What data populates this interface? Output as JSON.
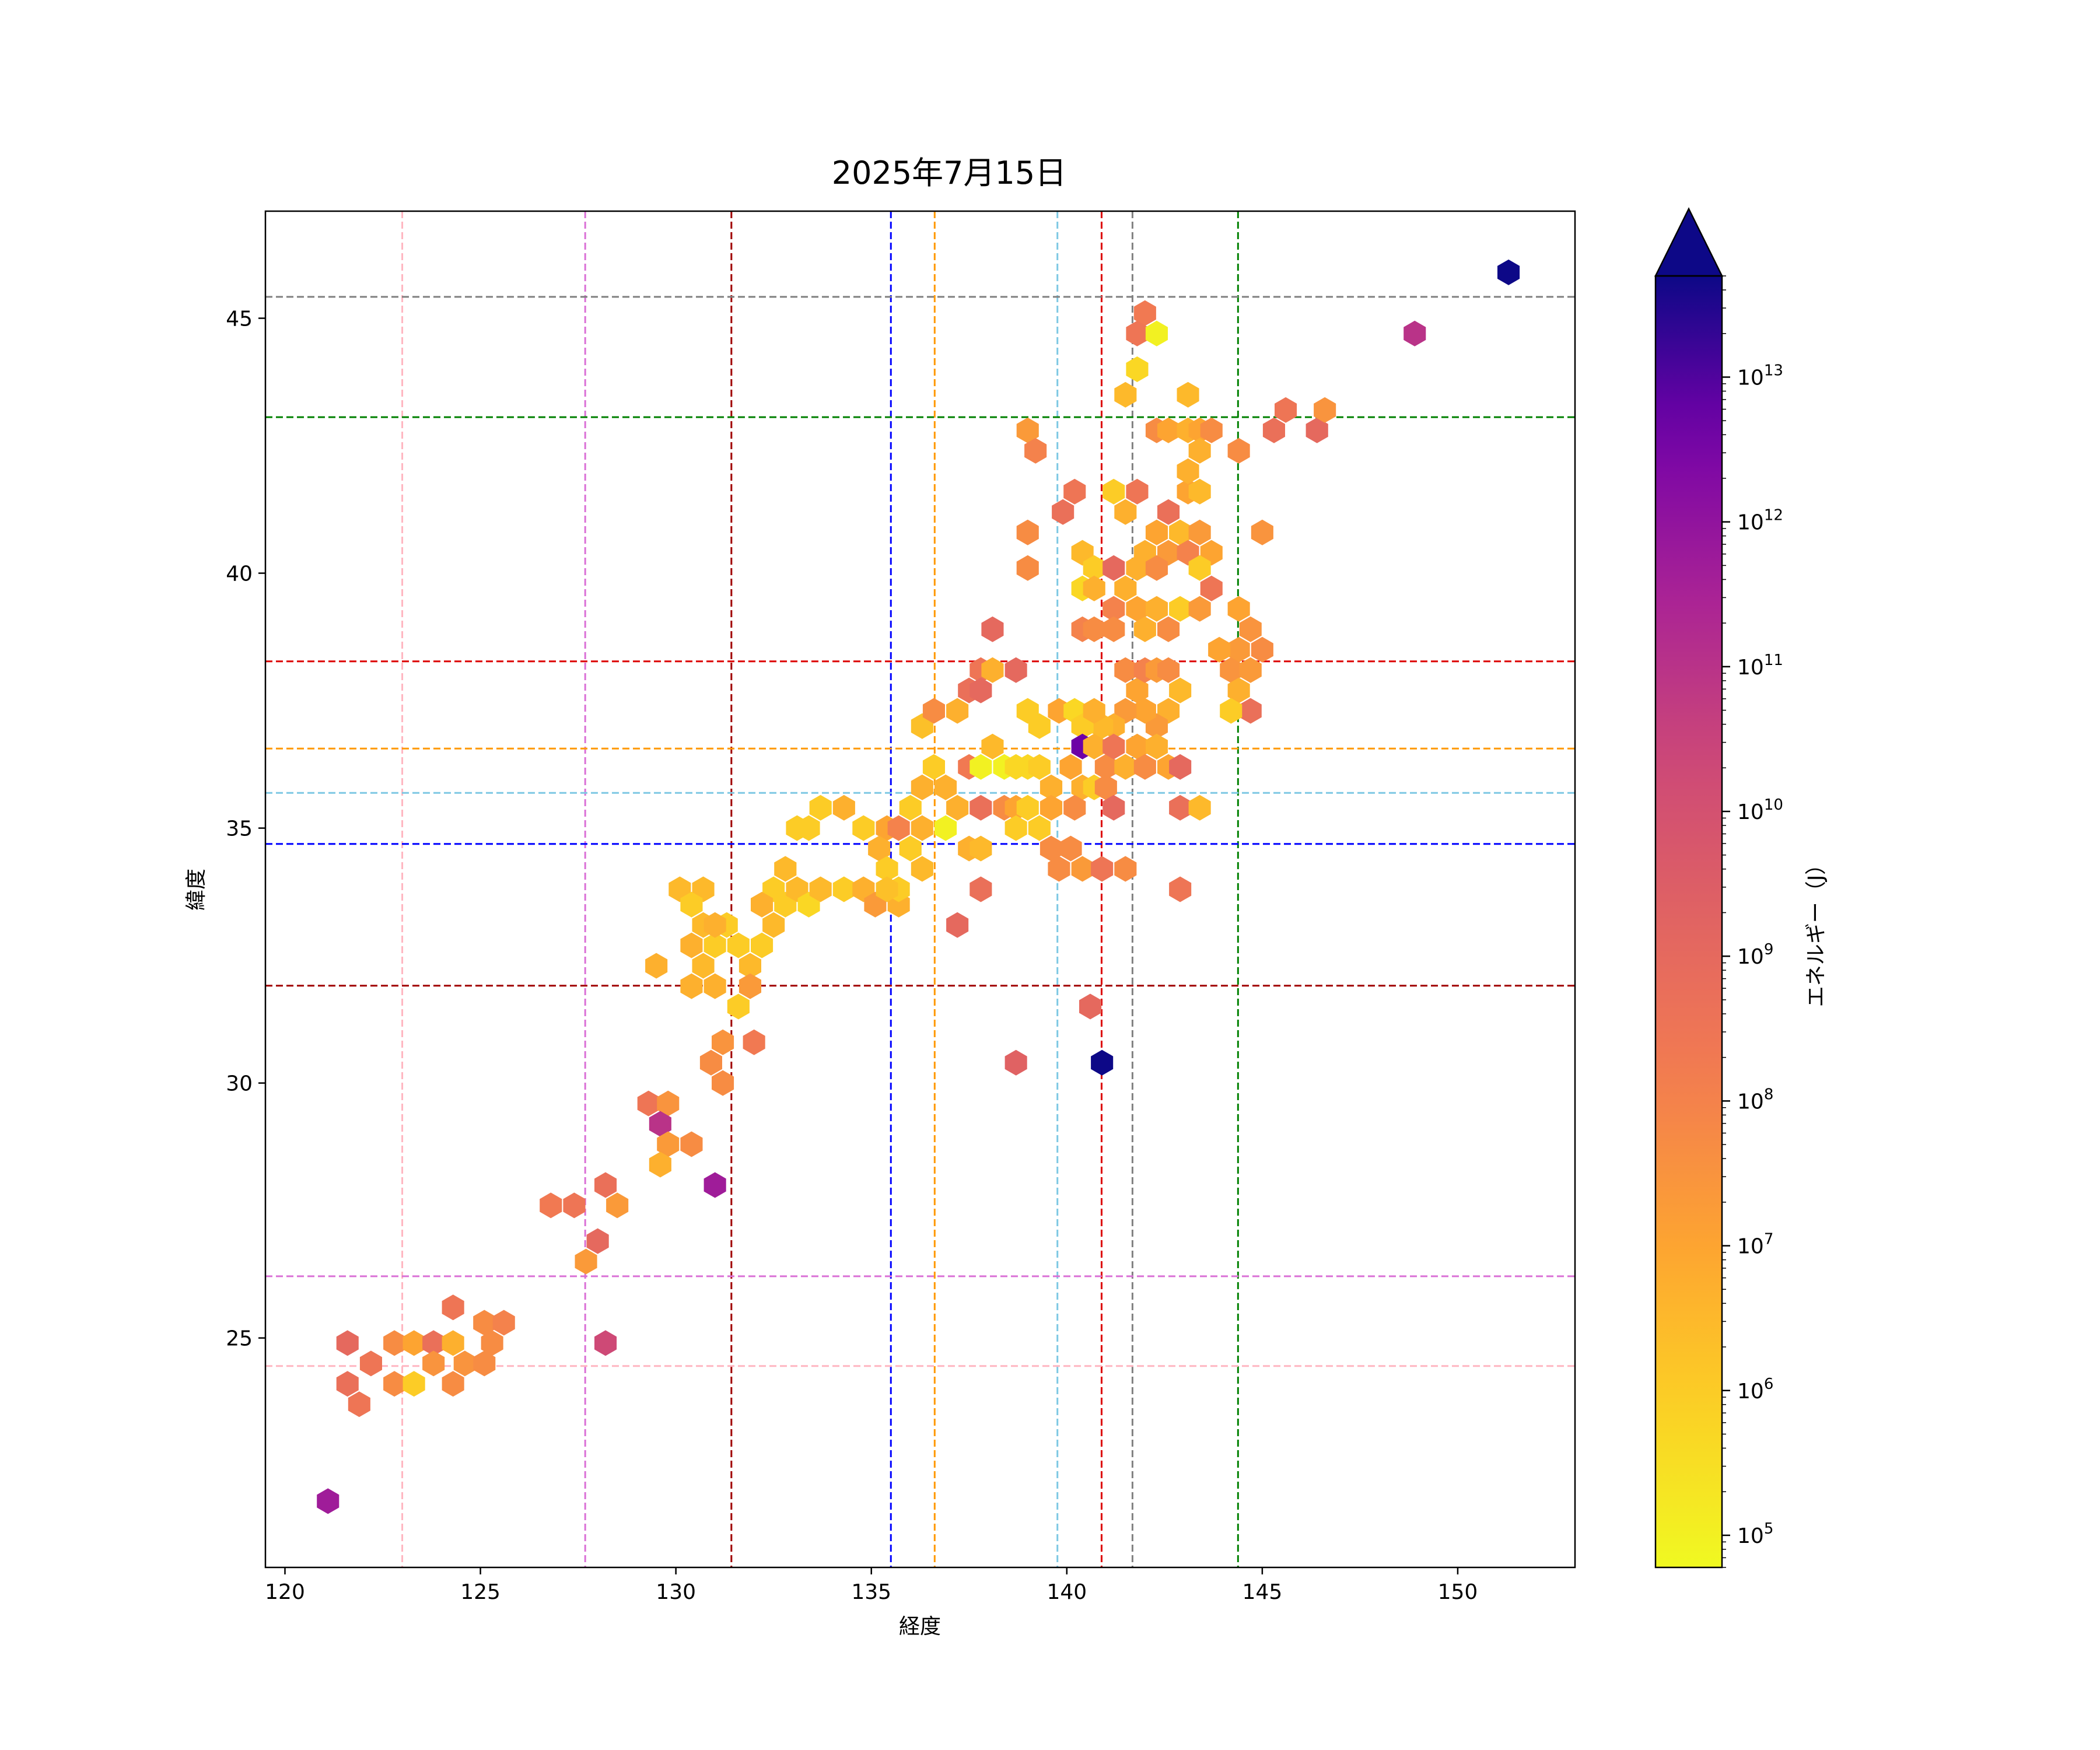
{
  "chart_data": {
    "type": "hexbin",
    "title": "2025年7月15日",
    "xlabel": "経度",
    "ylabel": "緯度",
    "xlim": [
      119.5,
      153
    ],
    "ylim": [
      20.5,
      47.1
    ],
    "xticks": [
      120,
      125,
      130,
      135,
      140,
      145,
      150
    ],
    "yticks": [
      25,
      30,
      35,
      40,
      45
    ],
    "grid": false,
    "colormap": "plasma_r",
    "colorbar": {
      "label": "エネルギー（J）",
      "scale": "log",
      "range": [
        60000,
        50000000000000
      ],
      "tick_exponents": [
        5,
        6,
        7,
        8,
        9,
        10,
        11,
        12,
        13
      ],
      "tick_base": "10",
      "extend": "max"
    },
    "reference_lines": {
      "vertical": [
        {
          "x": 123.0,
          "color": "#ffb6c1"
        },
        {
          "x": 127.68,
          "color": "#da70d6"
        },
        {
          "x": 131.42,
          "color": "#a00000"
        },
        {
          "x": 135.5,
          "color": "#0000ff"
        },
        {
          "x": 136.62,
          "color": "#ff9900"
        },
        {
          "x": 139.76,
          "color": "#7ec8e3"
        },
        {
          "x": 140.89,
          "color": "#dd0000"
        },
        {
          "x": 141.68,
          "color": "#808080"
        },
        {
          "x": 144.38,
          "color": "#008000"
        }
      ],
      "horizontal": [
        {
          "y": 45.42,
          "color": "#808080"
        },
        {
          "y": 43.06,
          "color": "#008000"
        },
        {
          "y": 38.27,
          "color": "#dd0000"
        },
        {
          "y": 36.56,
          "color": "#ff9900"
        },
        {
          "y": 35.69,
          "color": "#7ec8e3"
        },
        {
          "y": 34.69,
          "color": "#0000ff"
        },
        {
          "y": 31.91,
          "color": "#a00000"
        },
        {
          "y": 26.21,
          "color": "#da70d6"
        },
        {
          "y": 24.45,
          "color": "#ffb6c1"
        }
      ]
    },
    "points": [
      [
        151.3,
        45.9,
        50000000000000.0
      ],
      [
        148.9,
        44.7,
        100000000000.0
      ],
      [
        146.4,
        42.8,
        1000000000.0
      ],
      [
        146.6,
        43.2,
        30000000.0
      ],
      [
        145.6,
        43.2,
        300000000.0
      ],
      [
        145.3,
        42.8,
        500000000.0
      ],
      [
        145.0,
        40.8,
        30000000.0
      ],
      [
        142.0,
        45.1,
        200000000.0
      ],
      [
        141.8,
        44.7,
        300000000.0
      ],
      [
        142.3,
        44.7,
        100000.0
      ],
      [
        141.8,
        44.0,
        500000.0
      ],
      [
        141.5,
        43.5,
        3000000.0
      ],
      [
        143.1,
        43.5,
        3000000.0
      ],
      [
        139.0,
        42.8,
        20000000.0
      ],
      [
        139.2,
        42.4,
        100000000.0
      ],
      [
        142.3,
        42.8,
        50000000.0
      ],
      [
        142.6,
        42.8,
        10000000.0
      ],
      [
        143.1,
        42.8,
        5000000.0
      ],
      [
        143.4,
        42.8,
        10000000.0
      ],
      [
        143.7,
        42.8,
        50000000.0
      ],
      [
        140.2,
        41.6,
        300000000.0
      ],
      [
        139.9,
        41.2,
        500000000.0
      ],
      [
        141.2,
        41.6,
        1000000.0
      ],
      [
        141.8,
        41.6,
        300000000.0
      ],
      [
        141.5,
        41.2,
        5000000.0
      ],
      [
        142.6,
        41.2,
        500000000.0
      ],
      [
        143.1,
        41.6,
        10000000.0
      ],
      [
        143.4,
        41.6,
        3000000.0
      ],
      [
        143.1,
        42.0,
        5000000.0
      ],
      [
        143.4,
        42.4,
        5000000.0
      ],
      [
        144.4,
        42.4,
        50000000.0
      ],
      [
        139.0,
        40.8,
        50000000.0
      ],
      [
        139.0,
        40.1,
        50000000.0
      ],
      [
        140.4,
        40.4,
        3000000.0
      ],
      [
        140.7,
        40.1,
        1000000.0
      ],
      [
        140.4,
        39.7,
        500000.0
      ],
      [
        140.7,
        39.7,
        5000000.0
      ],
      [
        141.2,
        40.1,
        1000000000.0
      ],
      [
        141.5,
        39.7,
        5000000.0
      ],
      [
        141.2,
        39.3,
        100000000.0
      ],
      [
        141.8,
        40.1,
        5000000.0
      ],
      [
        142.0,
        40.4,
        5000000.0
      ],
      [
        142.3,
        40.8,
        10000000.0
      ],
      [
        142.6,
        40.4,
        20000000.0
      ],
      [
        142.9,
        40.8,
        3000000.0
      ],
      [
        143.1,
        40.4,
        100000000.0
      ],
      [
        143.4,
        40.8,
        20000000.0
      ],
      [
        143.7,
        40.4,
        10000000.0
      ],
      [
        143.4,
        40.1,
        1000000.0
      ],
      [
        143.7,
        39.7,
        300000000.0
      ],
      [
        142.3,
        40.1,
        50000000.0
      ],
      [
        138.1,
        38.9,
        1000000000.0
      ],
      [
        140.4,
        38.9,
        100000000.0
      ],
      [
        140.7,
        38.9,
        50000000.0
      ],
      [
        141.2,
        38.9,
        50000000.0
      ],
      [
        141.8,
        39.3,
        10000000.0
      ],
      [
        142.0,
        38.9,
        5000000.0
      ],
      [
        142.3,
        39.3,
        5000000.0
      ],
      [
        142.6,
        38.9,
        50000000.0
      ],
      [
        142.9,
        39.3,
        1000000.0
      ],
      [
        143.4,
        39.3,
        20000000.0
      ],
      [
        144.4,
        39.3,
        10000000.0
      ],
      [
        144.7,
        38.9,
        30000000.0
      ],
      [
        145.0,
        38.5,
        50000000.0
      ],
      [
        144.4,
        38.5,
        20000000.0
      ],
      [
        137.5,
        37.7,
        500000000.0
      ],
      [
        137.8,
        38.1,
        300000000.0
      ],
      [
        138.1,
        38.1,
        5000000.0
      ],
      [
        138.7,
        38.1,
        1000000000.0
      ],
      [
        137.8,
        37.7,
        1000000000.0
      ],
      [
        141.5,
        38.1,
        50000000.0
      ],
      [
        141.8,
        37.7,
        10000000.0
      ],
      [
        142.0,
        38.1,
        100000000.0
      ],
      [
        142.3,
        38.1,
        20000000.0
      ],
      [
        142.6,
        38.1,
        50000000.0
      ],
      [
        142.9,
        37.7,
        3000000.0
      ],
      [
        143.9,
        38.5,
        10000000.0
      ],
      [
        144.2,
        38.1,
        30000000.0
      ],
      [
        144.4,
        37.7,
        5000000.0
      ],
      [
        144.7,
        38.1,
        20000000.0
      ],
      [
        144.7,
        37.3,
        500000000.0
      ],
      [
        144.2,
        37.3,
        1000000.0
      ],
      [
        142.6,
        37.3,
        5000000.0
      ],
      [
        142.3,
        37.0,
        20000000.0
      ],
      [
        142.0,
        37.3,
        10000000.0
      ],
      [
        141.5,
        37.3,
        20000000.0
      ],
      [
        141.2,
        37.0,
        5000000.0
      ],
      [
        140.9,
        37.0,
        3000000.0
      ],
      [
        136.3,
        37.0,
        2000000.0
      ],
      [
        136.6,
        37.3,
        50000000.0
      ],
      [
        137.2,
        37.3,
        5000000.0
      ],
      [
        139.0,
        37.3,
        1000000.0
      ],
      [
        139.3,
        37.0,
        1000000.0
      ],
      [
        139.8,
        37.3,
        10000000.0
      ],
      [
        140.2,
        37.3,
        500000.0
      ],
      [
        140.4,
        37.0,
        1000000.0
      ],
      [
        140.7,
        37.3,
        5000000.0
      ],
      [
        140.4,
        36.6,
        5000000000000.0
      ],
      [
        140.1,
        36.2,
        10000000.0
      ],
      [
        140.7,
        36.6,
        5000000.0
      ],
      [
        141.0,
        36.2,
        50000000.0
      ],
      [
        141.2,
        36.6,
        300000000.0
      ],
      [
        141.5,
        36.2,
        5000000.0
      ],
      [
        141.8,
        36.6,
        10000000.0
      ],
      [
        142.0,
        36.2,
        50000000.0
      ],
      [
        142.3,
        36.6,
        5000000.0
      ],
      [
        142.6,
        36.2,
        10000000.0
      ],
      [
        142.9,
        36.2,
        1000000000.0
      ],
      [
        138.1,
        36.6,
        3000000.0
      ],
      [
        137.5,
        36.2,
        200000000.0
      ],
      [
        137.8,
        36.2,
        100000.0
      ],
      [
        138.4,
        36.2,
        100000.0
      ],
      [
        138.7,
        36.2,
        500000.0
      ],
      [
        139.0,
        36.2,
        500000.0
      ],
      [
        139.3,
        36.2,
        1000000.0
      ],
      [
        139.6,
        35.8,
        5000000.0
      ],
      [
        140.4,
        35.8,
        5000000.0
      ],
      [
        140.7,
        35.8,
        1000000.0
      ],
      [
        141.0,
        35.8,
        50000000.0
      ],
      [
        136.6,
        36.2,
        1000000.0
      ],
      [
        136.3,
        35.8,
        5000000.0
      ],
      [
        136.9,
        35.8,
        5000000.0
      ],
      [
        137.2,
        35.4,
        5000000.0
      ],
      [
        137.8,
        35.4,
        500000000.0
      ],
      [
        138.4,
        35.4,
        50000000.0
      ],
      [
        138.7,
        35.4,
        10000000.0
      ],
      [
        139.0,
        35.4,
        1000000.0
      ],
      [
        139.3,
        35.0,
        1000000.0
      ],
      [
        139.6,
        35.4,
        10000000.0
      ],
      [
        140.2,
        35.4,
        50000000.0
      ],
      [
        141.2,
        35.4,
        1000000000.0
      ],
      [
        142.9,
        35.4,
        500000000.0
      ],
      [
        143.4,
        35.4,
        3000000.0
      ],
      [
        133.1,
        35.0,
        1000000.0
      ],
      [
        133.4,
        35.0,
        1000000.0
      ],
      [
        133.7,
        35.4,
        1000000.0
      ],
      [
        134.3,
        35.4,
        5000000.0
      ],
      [
        134.8,
        35.0,
        1000000.0
      ],
      [
        135.4,
        35.0,
        10000000.0
      ],
      [
        135.7,
        35.0,
        100000000.0
      ],
      [
        136.0,
        35.4,
        1000000.0
      ],
      [
        136.3,
        35.0,
        5000000.0
      ],
      [
        136.9,
        35.0,
        100000.0
      ],
      [
        137.5,
        34.6,
        5000000.0
      ],
      [
        137.8,
        34.6,
        3000000.0
      ],
      [
        138.7,
        35.0,
        1000000.0
      ],
      [
        139.6,
        34.6,
        50000000.0
      ],
      [
        140.1,
        34.6,
        50000000.0
      ],
      [
        139.8,
        34.2,
        50000000.0
      ],
      [
        140.4,
        34.2,
        20000000.0
      ],
      [
        140.9,
        34.2,
        300000000.0
      ],
      [
        141.5,
        34.2,
        50000000.0
      ],
      [
        135.2,
        34.6,
        5000000.0
      ],
      [
        135.4,
        34.2,
        1000000.0
      ],
      [
        136.0,
        34.6,
        1000000.0
      ],
      [
        136.3,
        34.2,
        3000000.0
      ],
      [
        137.8,
        33.8,
        500000000.0
      ],
      [
        142.9,
        33.8,
        300000000.0
      ],
      [
        132.8,
        34.2,
        3000000.0
      ],
      [
        132.5,
        33.8,
        1000000.0
      ],
      [
        132.8,
        33.5,
        1000000.0
      ],
      [
        133.1,
        33.8,
        3000000.0
      ],
      [
        133.4,
        33.5,
        500000.0
      ],
      [
        133.7,
        33.8,
        3000000.0
      ],
      [
        134.3,
        33.8,
        1000000.0
      ],
      [
        134.8,
        33.8,
        5000000.0
      ],
      [
        135.1,
        33.5,
        20000000.0
      ],
      [
        135.7,
        33.5,
        5000000.0
      ],
      [
        135.7,
        33.8,
        1000000.0
      ],
      [
        135.4,
        33.8,
        2000000.0
      ],
      [
        130.1,
        33.8,
        3000000.0
      ],
      [
        130.7,
        33.8,
        3000000.0
      ],
      [
        130.4,
        33.5,
        1000000.0
      ],
      [
        130.7,
        33.1,
        3000000.0
      ],
      [
        131.0,
        32.7,
        1000000.0
      ],
      [
        131.3,
        33.1,
        1000000.0
      ],
      [
        131.0,
        33.1,
        5000000.0
      ],
      [
        130.4,
        32.7,
        5000000.0
      ],
      [
        130.7,
        32.3,
        3000000.0
      ],
      [
        130.4,
        31.9,
        5000000.0
      ],
      [
        131.0,
        31.9,
        5000000.0
      ],
      [
        131.6,
        32.7,
        1000000.0
      ],
      [
        131.9,
        32.3,
        3000000.0
      ],
      [
        132.2,
        32.7,
        1000000.0
      ],
      [
        132.5,
        33.1,
        3000000.0
      ],
      [
        132.2,
        33.5,
        5000000.0
      ],
      [
        131.9,
        31.9,
        20000000.0
      ],
      [
        131.6,
        31.5,
        1000000.0
      ],
      [
        129.5,
        32.3,
        5000000.0
      ],
      [
        137.2,
        33.1,
        1000000000.0
      ],
      [
        140.6,
        31.5,
        1000000000.0
      ],
      [
        138.7,
        30.4,
        2000000000.0
      ],
      [
        140.9,
        30.4,
        50000000000000.0
      ],
      [
        131.2,
        30.8,
        30000000.0
      ],
      [
        130.9,
        30.4,
        50000000.0
      ],
      [
        131.2,
        30.0,
        50000000.0
      ],
      [
        132.0,
        30.8,
        200000000.0
      ],
      [
        129.3,
        29.6,
        300000000.0
      ],
      [
        129.8,
        29.6,
        30000000.0
      ],
      [
        129.6,
        29.2,
        100000000000.0
      ],
      [
        129.8,
        28.8,
        20000000.0
      ],
      [
        130.4,
        28.8,
        50000000.0
      ],
      [
        129.6,
        28.4,
        5000000.0
      ],
      [
        131.0,
        28.0,
        500000000000.0
      ],
      [
        126.8,
        27.6,
        200000000.0
      ],
      [
        127.4,
        27.6,
        300000000.0
      ],
      [
        128.2,
        28.0,
        500000000.0
      ],
      [
        128.5,
        27.6,
        20000000.0
      ],
      [
        127.7,
        26.5,
        20000000.0
      ],
      [
        128.0,
        26.9,
        1000000000.0
      ],
      [
        128.2,
        24.9,
        20000000000.0
      ],
      [
        121.6,
        24.9,
        1000000000.0
      ],
      [
        121.6,
        24.1,
        500000000.0
      ],
      [
        122.2,
        24.5,
        300000000.0
      ],
      [
        121.9,
        23.7,
        300000000.0
      ],
      [
        122.8,
        24.9,
        50000000.0
      ],
      [
        122.8,
        24.1,
        50000000.0
      ],
      [
        123.3,
        24.9,
        10000000.0
      ],
      [
        123.3,
        24.1,
        1000000.0
      ],
      [
        123.8,
        24.9,
        500000000.0
      ],
      [
        123.8,
        24.5,
        30000000.0
      ],
      [
        124.3,
        24.9,
        5000000.0
      ],
      [
        124.3,
        24.1,
        50000000.0
      ],
      [
        124.6,
        24.5,
        30000000.0
      ],
      [
        125.1,
        24.5,
        50000000.0
      ],
      [
        125.3,
        24.9,
        50000000.0
      ],
      [
        125.1,
        25.3,
        50000000.0
      ],
      [
        125.6,
        25.3,
        100000000.0
      ],
      [
        124.3,
        25.6,
        300000000.0
      ],
      [
        121.1,
        21.8,
        500000000000.0
      ]
    ]
  }
}
